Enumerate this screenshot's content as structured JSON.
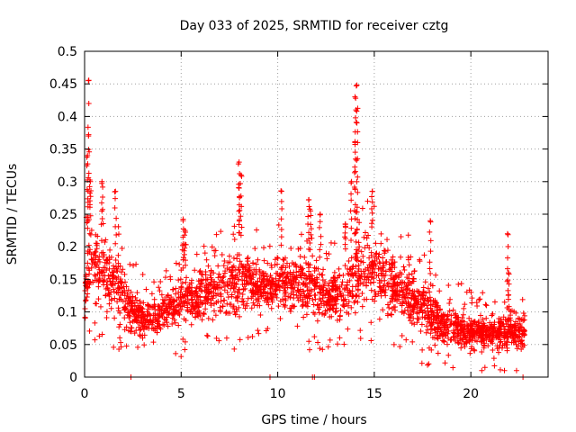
{
  "chart_data": {
    "type": "scatter",
    "title": "Day 033 of 2025, SRMTID for receiver cztg",
    "xlabel": "GPS time / hours",
    "ylabel": "SRMTID / TECUs",
    "xlim": [
      0,
      24
    ],
    "ylim": [
      0,
      0.5
    ],
    "x_ticks": [
      0,
      5,
      10,
      15,
      20
    ],
    "y_ticks": [
      0,
      0.05,
      0.1,
      0.15,
      0.2,
      0.25,
      0.3,
      0.35,
      0.4,
      0.45,
      0.5
    ],
    "grid": true,
    "legend": "none",
    "marker": "+",
    "series_color": "#ff0000",
    "envelope": {
      "description": "approximate typical band and spikes of SRMTID values vs time",
      "times": [
        0,
        0.3,
        0.7,
        1.2,
        1.8,
        2.4,
        3.0,
        3.6,
        4.2,
        5.0,
        5.5,
        6.5,
        7.5,
        8.0,
        8.5,
        9.5,
        10.2,
        11.0,
        11.8,
        12.5,
        13.3,
        14.0,
        14.5,
        15.2,
        16.0,
        16.8,
        17.5,
        18.2,
        19.0,
        19.8,
        20.5,
        21.3,
        22.0,
        22.8
      ],
      "low": [
        0.06,
        0.08,
        0.09,
        0.08,
        0.07,
        0.05,
        0.05,
        0.05,
        0.06,
        0.06,
        0.06,
        0.08,
        0.07,
        0.06,
        0.09,
        0.09,
        0.09,
        0.08,
        0.07,
        0.06,
        0.07,
        0.08,
        0.08,
        0.09,
        0.08,
        0.06,
        0.05,
        0.04,
        0.04,
        0.03,
        0.03,
        0.03,
        0.03,
        0.04
      ],
      "high": [
        0.2,
        0.26,
        0.24,
        0.22,
        0.2,
        0.16,
        0.12,
        0.13,
        0.14,
        0.17,
        0.17,
        0.18,
        0.2,
        0.22,
        0.2,
        0.18,
        0.2,
        0.19,
        0.2,
        0.17,
        0.19,
        0.22,
        0.25,
        0.22,
        0.2,
        0.18,
        0.16,
        0.13,
        0.11,
        0.1,
        0.1,
        0.1,
        0.11,
        0.1
      ]
    },
    "spikes": [
      {
        "x": 0.2,
        "y": 0.455
      },
      {
        "x": 0.2,
        "y": 0.37
      },
      {
        "x": 0.15,
        "y": 0.34
      },
      {
        "x": 0.3,
        "y": 0.3
      },
      {
        "x": 0.9,
        "y": 0.3
      },
      {
        "x": 1.6,
        "y": 0.285
      },
      {
        "x": 8.0,
        "y": 0.33
      },
      {
        "x": 8.1,
        "y": 0.31
      },
      {
        "x": 8.0,
        "y": 0.29
      },
      {
        "x": 10.2,
        "y": 0.285
      },
      {
        "x": 11.6,
        "y": 0.272
      },
      {
        "x": 13.8,
        "y": 0.298
      },
      {
        "x": 14.1,
        "y": 0.448
      },
      {
        "x": 14.0,
        "y": 0.43
      },
      {
        "x": 14.05,
        "y": 0.41
      },
      {
        "x": 14.1,
        "y": 0.39
      },
      {
        "x": 14.0,
        "y": 0.36
      },
      {
        "x": 14.9,
        "y": 0.285
      },
      {
        "x": 17.9,
        "y": 0.24
      },
      {
        "x": 21.9,
        "y": 0.22
      },
      {
        "x": 21.95,
        "y": 0.16
      },
      {
        "x": 5.1,
        "y": 0.24
      },
      {
        "x": 5.2,
        "y": 0.225
      },
      {
        "x": 12.2,
        "y": 0.25
      },
      {
        "x": 11.7,
        "y": 0.255
      },
      {
        "x": 13.5,
        "y": 0.235
      }
    ],
    "zero_points": [
      {
        "x": 2.4,
        "y": 0
      },
      {
        "x": 9.6,
        "y": 0
      },
      {
        "x": 11.8,
        "y": 0
      },
      {
        "x": 11.9,
        "y": 0
      },
      {
        "x": 22.7,
        "y": 0
      }
    ]
  }
}
